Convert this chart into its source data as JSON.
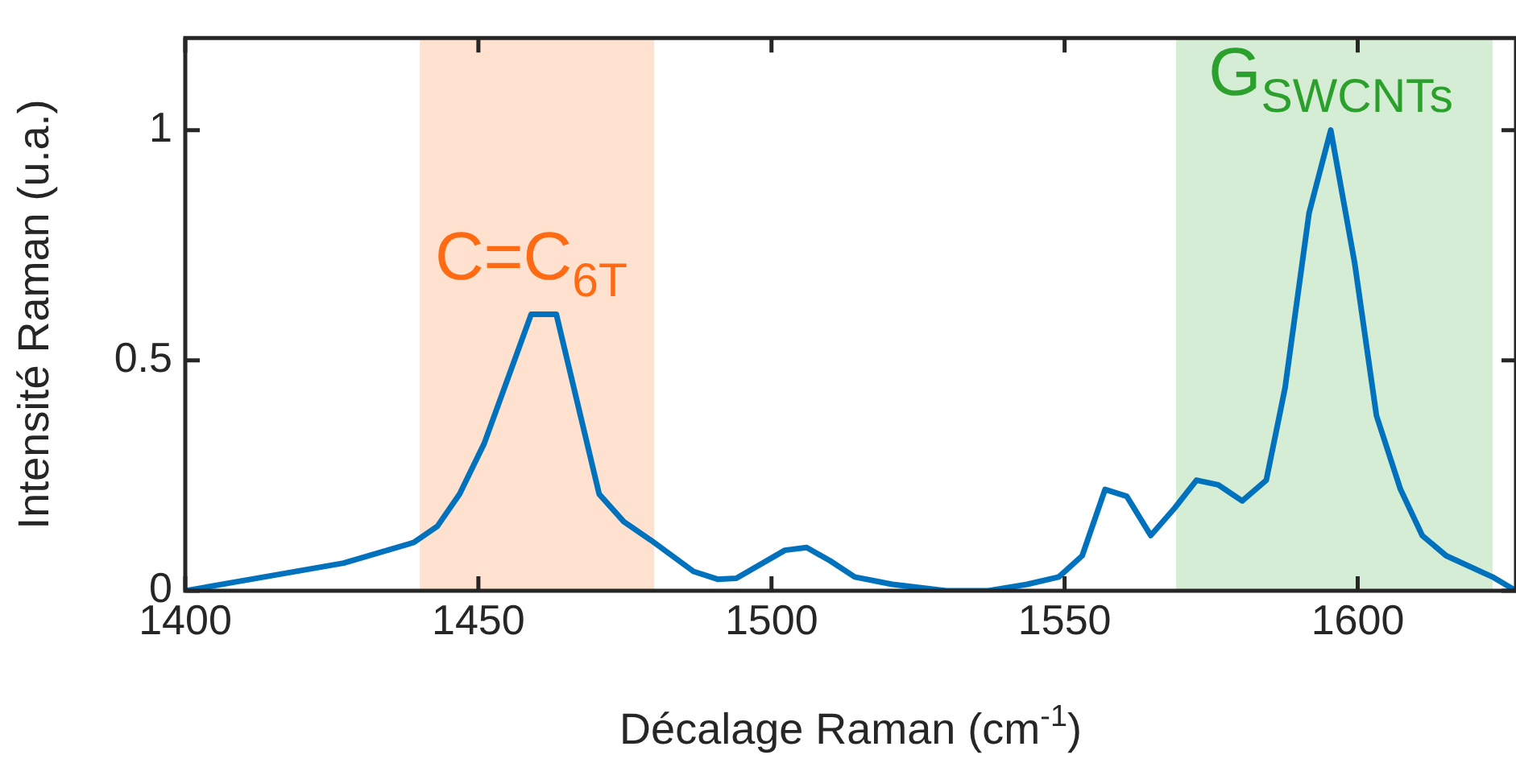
{
  "chart_data": {
    "type": "line",
    "xlabel": "Décalage Raman (cm$^{-1}$)",
    "ylabel": "Intensité Raman (u.a.)",
    "xlim": [
      1400,
      1627
    ],
    "ylim": [
      0,
      1.2
    ],
    "xticks": [
      1400,
      1450,
      1500,
      1550,
      1600
    ],
    "yticks": [
      0,
      0.5,
      1
    ],
    "grid": false,
    "marker": "none",
    "line_style": "solid",
    "series": [
      {
        "color": "#0072bd",
        "x": [
          1400,
          1427,
          1439,
          1443,
          1446.8,
          1451,
          1459,
          1463.3,
          1470.6,
          1474.8,
          1479.4,
          1486.7,
          1490.8,
          1494,
          1502.3,
          1506,
          1510,
          1514.2,
          1520.6,
          1529.8,
          1537,
          1543.6,
          1549,
          1553,
          1556.9,
          1560.6,
          1564.7,
          1568.8,
          1572.5,
          1576.2,
          1580.3,
          1584.4,
          1587.6,
          1591.7,
          1595.4,
          1599.5,
          1603.2,
          1607.3,
          1611,
          1615.1,
          1623,
          1627
        ],
        "values": [
          0,
          0.06,
          0.105,
          0.14,
          0.21,
          0.32,
          0.6,
          0.6,
          0.21,
          0.15,
          0.11,
          0.042,
          0.025,
          0.027,
          0.088,
          0.094,
          0.065,
          0.03,
          0.014,
          0,
          0,
          0.014,
          0.03,
          0.076,
          0.22,
          0.205,
          0.12,
          0.18,
          0.24,
          0.23,
          0.195,
          0.24,
          0.44,
          0.82,
          1.0,
          0.71,
          0.38,
          0.22,
          0.12,
          0.076,
          0.03,
          0
        ]
      }
    ],
    "bands": [
      {
        "axis": "x",
        "from": 1440,
        "to": 1480,
        "color": "#ff6a13",
        "label": "C=C$_{6T}$"
      },
      {
        "axis": "x",
        "from": 1569,
        "to": 1623,
        "color": "#2ca02c",
        "label": "G$_{SWCNTs}$"
      }
    ]
  }
}
